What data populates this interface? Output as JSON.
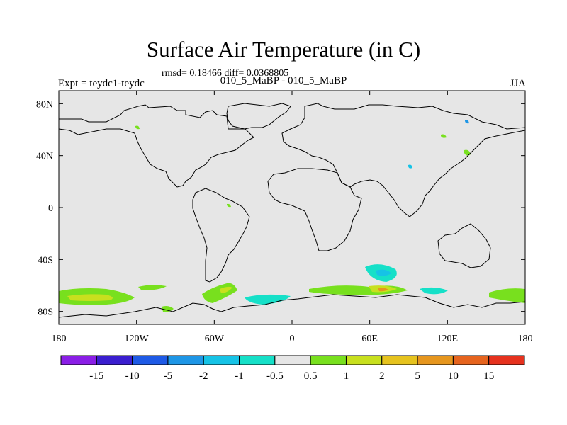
{
  "title": "Surface Air Temperature (in C)",
  "stats_text": "rmsd= 0.18466 diff= 0.0368805",
  "left_label": "Expt = teydc1-teydc",
  "center_label": "010_5_MaBP - 010_5_MaBP",
  "right_label": "JJA",
  "map": {
    "projection": "cylindrical-equidistant",
    "lon_range": [
      -180,
      180
    ],
    "lat_range": [
      -90,
      90
    ],
    "background_color": "#e6e6e6",
    "x_ticks": [
      {
        "lon": -180,
        "label": "180"
      },
      {
        "lon": -120,
        "label": "120W"
      },
      {
        "lon": -60,
        "label": "60W"
      },
      {
        "lon": 0,
        "label": "0"
      },
      {
        "lon": 60,
        "label": "60E"
      },
      {
        "lon": 120,
        "label": "120E"
      },
      {
        "lon": 180,
        "label": "180"
      }
    ],
    "y_ticks": [
      {
        "lat": 80,
        "label": "80N"
      },
      {
        "lat": 40,
        "label": "40N"
      },
      {
        "lat": 0,
        "label": "0"
      },
      {
        "lat": -40,
        "label": "40S"
      },
      {
        "lat": -80,
        "label": "80S"
      }
    ]
  },
  "colorbar": {
    "colors": [
      "#8a1ee6",
      "#3a1ecf",
      "#1e5ae6",
      "#1e96e6",
      "#16c3e6",
      "#16e0c8",
      "#e6e6e6",
      "#78e01e",
      "#c8e01e",
      "#e6c31e",
      "#e6961e",
      "#e6641e",
      "#e6321e"
    ],
    "labels": [
      "-15",
      "-10",
      "-5",
      "-2",
      "-1",
      "-0.5",
      "0.5",
      "1",
      "2",
      "5",
      "10",
      "15"
    ]
  }
}
